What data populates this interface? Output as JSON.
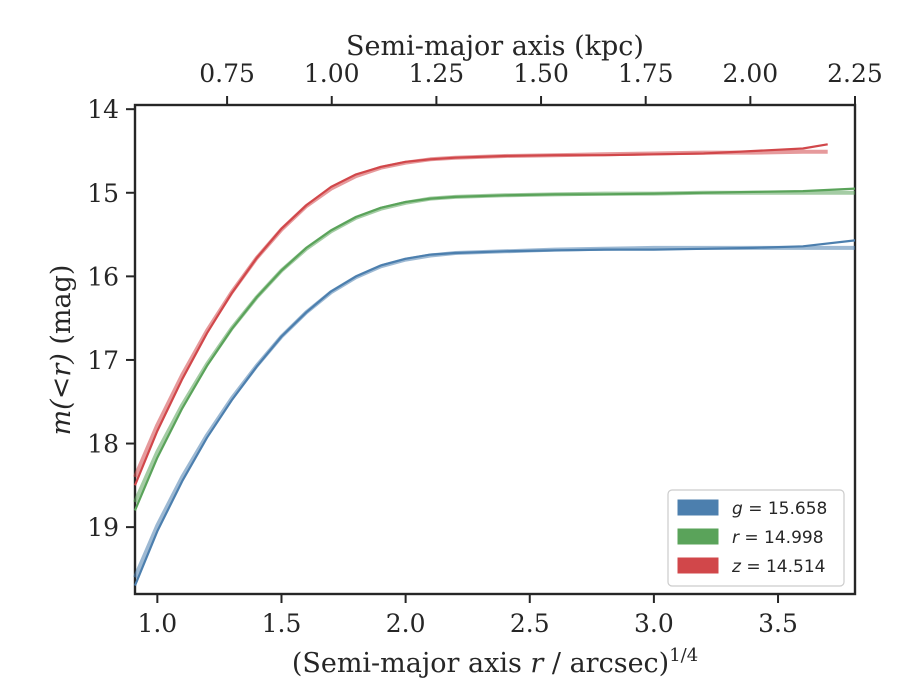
{
  "chart_data": {
    "type": "line",
    "xlabel": "(Semi-major axis r / arcsec)^1/4",
    "xlabel_prefix": "(Semi-major axis ",
    "xlabel_var": "r",
    "xlabel_suffix": " / arcsec)",
    "xlabel_exp": "1/4",
    "ylabel": "m(<r) (mag)",
    "ylabel_math": "m(<r)",
    "ylabel_unit": " (mag)",
    "top_xlabel": "Semi-major axis (kpc)",
    "xlim": [
      0.91,
      3.81
    ],
    "ylim": [
      19.8,
      13.95
    ],
    "y_inverted": true,
    "top_xlim": [
      0.53,
      2.25
    ],
    "x_ticks": [
      "1.0",
      "1.5",
      "2.0",
      "2.5",
      "3.0",
      "3.5"
    ],
    "y_ticks": [
      "14",
      "15",
      "16",
      "17",
      "18",
      "19"
    ],
    "top_x_ticks": [
      "0.75",
      "1.00",
      "1.25",
      "1.50",
      "1.75",
      "2.00",
      "2.25"
    ],
    "grid": false,
    "legend_position": "lower-right",
    "series": [
      {
        "name": "g = 15.658",
        "band": "g",
        "total": "15.658",
        "color": "#4c7fae",
        "x": [
          0.91,
          1.0,
          1.1,
          1.2,
          1.3,
          1.4,
          1.5,
          1.6,
          1.7,
          1.8,
          1.9,
          2.0,
          2.1,
          2.2,
          2.4,
          2.6,
          2.8,
          3.0,
          3.2,
          3.4,
          3.6,
          3.81
        ],
        "y": [
          19.7,
          19.05,
          18.45,
          17.93,
          17.48,
          17.08,
          16.72,
          16.43,
          16.18,
          16.0,
          15.87,
          15.79,
          15.74,
          15.72,
          15.7,
          15.69,
          15.68,
          15.68,
          15.67,
          15.66,
          15.64,
          15.57
        ],
        "fit_y": [
          19.6,
          18.98,
          18.4,
          17.9,
          17.46,
          17.07,
          16.72,
          16.43,
          16.19,
          16.01,
          15.88,
          15.8,
          15.75,
          15.72,
          15.7,
          15.68,
          15.67,
          15.66,
          15.66,
          15.66,
          15.66,
          15.66
        ]
      },
      {
        "name": "r = 14.998",
        "band": "r",
        "total": "14.998",
        "color": "#5aa35a",
        "x": [
          0.91,
          1.0,
          1.1,
          1.2,
          1.3,
          1.4,
          1.5,
          1.6,
          1.7,
          1.8,
          1.9,
          2.0,
          2.1,
          2.2,
          2.4,
          2.6,
          2.8,
          3.0,
          3.2,
          3.4,
          3.6,
          3.81
        ],
        "y": [
          18.8,
          18.17,
          17.58,
          17.07,
          16.63,
          16.25,
          15.93,
          15.66,
          15.45,
          15.29,
          15.18,
          15.11,
          15.07,
          15.05,
          15.03,
          15.02,
          15.02,
          15.01,
          15.0,
          14.99,
          14.98,
          14.95
        ],
        "fit_y": [
          18.7,
          18.1,
          17.54,
          17.05,
          16.62,
          16.25,
          15.93,
          15.67,
          15.46,
          15.3,
          15.19,
          15.12,
          15.07,
          15.05,
          15.03,
          15.02,
          15.01,
          15.01,
          15.0,
          15.0,
          15.0,
          15.0
        ]
      },
      {
        "name": "z = 14.514",
        "band": "z",
        "total": "14.514",
        "color": "#d1474a",
        "x": [
          0.91,
          1.0,
          1.1,
          1.2,
          1.3,
          1.4,
          1.5,
          1.6,
          1.7,
          1.8,
          1.9,
          2.0,
          2.1,
          2.2,
          2.4,
          2.6,
          2.8,
          3.0,
          3.2,
          3.4,
          3.6,
          3.7
        ],
        "y": [
          18.5,
          17.85,
          17.23,
          16.68,
          16.2,
          15.78,
          15.43,
          15.15,
          14.93,
          14.78,
          14.69,
          14.63,
          14.6,
          14.58,
          14.56,
          14.55,
          14.55,
          14.54,
          14.53,
          14.5,
          14.47,
          14.42
        ],
        "fit_y": [
          18.4,
          17.78,
          17.18,
          16.65,
          16.19,
          15.78,
          15.44,
          15.16,
          14.95,
          14.8,
          14.7,
          14.64,
          14.6,
          14.58,
          14.56,
          14.55,
          14.54,
          14.53,
          14.52,
          14.52,
          14.51,
          14.51
        ]
      }
    ]
  }
}
